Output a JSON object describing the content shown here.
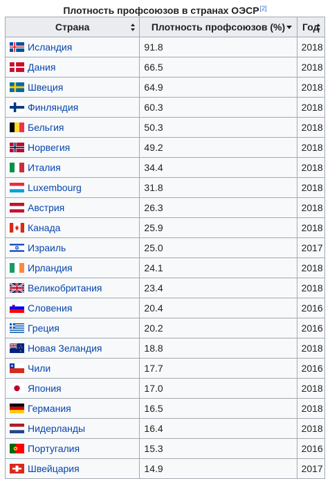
{
  "caption": "Плотность профсоюзов в странах ОЭСР",
  "footnote": "[2]",
  "headers": {
    "country": "Страна",
    "density": "Плотность профсоюзов (%)",
    "year": "Год"
  },
  "rows": [
    {
      "country": "Исландия",
      "density": "91.8",
      "year": "2018",
      "flag": "iceland-flag"
    },
    {
      "country": "Дания",
      "density": "66.5",
      "year": "2018",
      "flag": "denmark-flag"
    },
    {
      "country": "Швеция",
      "density": "64.9",
      "year": "2018",
      "flag": "sweden-flag"
    },
    {
      "country": "Финляндия",
      "density": "60.3",
      "year": "2018",
      "flag": "finland-flag"
    },
    {
      "country": "Бельгия",
      "density": "50.3",
      "year": "2018",
      "flag": "belgium-flag"
    },
    {
      "country": "Норвегия",
      "density": "49.2",
      "year": "2018",
      "flag": "norway-flag"
    },
    {
      "country": "Италия",
      "density": "34.4",
      "year": "2018",
      "flag": "italy-flag"
    },
    {
      "country": "Luxembourg",
      "density": "31.8",
      "year": "2018",
      "flag": "luxembourg-flag"
    },
    {
      "country": "Австрия",
      "density": "26.3",
      "year": "2018",
      "flag": "austria-flag"
    },
    {
      "country": "Канада",
      "density": "25.9",
      "year": "2018",
      "flag": "canada-flag"
    },
    {
      "country": "Израиль",
      "density": "25.0",
      "year": "2017",
      "flag": "israel-flag"
    },
    {
      "country": "Ирландия",
      "density": "24.1",
      "year": "2018",
      "flag": "ireland-flag"
    },
    {
      "country": "Великобритания",
      "density": "23.4",
      "year": "2018",
      "flag": "uk-flag"
    },
    {
      "country": "Словения",
      "density": "20.4",
      "year": "2016",
      "flag": "slovenia-flag"
    },
    {
      "country": "Греция",
      "density": "20.2",
      "year": "2016",
      "flag": "greece-flag"
    },
    {
      "country": "Новая Зеландия",
      "density": "18.8",
      "year": "2018",
      "flag": "new-zealand-flag"
    },
    {
      "country": "Чили",
      "density": "17.7",
      "year": "2016",
      "flag": "chile-flag"
    },
    {
      "country": "Япония",
      "density": "17.0",
      "year": "2018",
      "flag": "japan-flag"
    },
    {
      "country": "Германия",
      "density": "16.5",
      "year": "2018",
      "flag": "germany-flag"
    },
    {
      "country": "Нидерланды",
      "density": "16.4",
      "year": "2018",
      "flag": "netherlands-flag"
    },
    {
      "country": "Португалия",
      "density": "15.3",
      "year": "2016",
      "flag": "portugal-flag"
    },
    {
      "country": "Швейцария",
      "density": "14.9",
      "year": "2017",
      "flag": "switzerland-flag"
    }
  ]
}
